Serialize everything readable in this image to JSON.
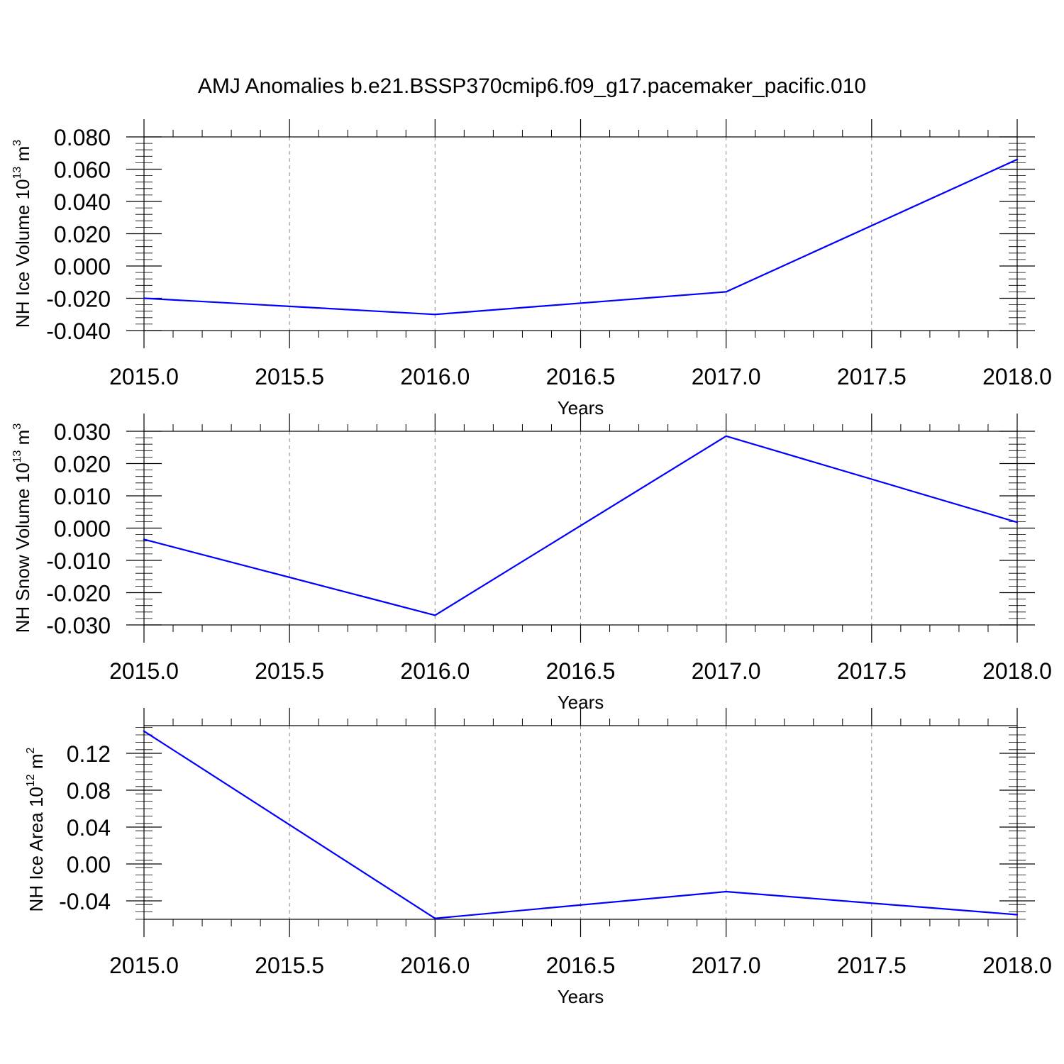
{
  "title": "AMJ Anomalies b.e21.BSSP370cmip6.f09_g17.pacemaker_pacific.010",
  "chart_data": [
    {
      "type": "line",
      "title": "AMJ Anomalies b.e21.BSSP370cmip6.f09_g17.pacemaker_pacific.010",
      "xlabel": "Years",
      "ylabel": {
        "text": "NH Ice Volume 10",
        "sup": "13",
        "unit": " m",
        "unit_sup": "3"
      },
      "x": [
        2015.0,
        2016.0,
        2017.0,
        2018.0
      ],
      "series": [
        {
          "values": [
            -0.02,
            -0.03,
            -0.016,
            0.066
          ],
          "color": "#0000ff"
        }
      ],
      "xlim": [
        2015.0,
        2018.0
      ],
      "ylim": [
        -0.04,
        0.08
      ],
      "xticks": [
        "2015.0",
        "2015.5",
        "2016.0",
        "2016.5",
        "2017.0",
        "2017.5",
        "2018.0"
      ],
      "yticks": [
        "-0.040",
        "-0.020",
        "0.000",
        "0.020",
        "0.040",
        "0.060",
        "0.080"
      ],
      "grid": "vertical dashed"
    },
    {
      "type": "line",
      "xlabel": "Years",
      "ylabel": {
        "text": "NH Snow Volume 10",
        "sup": "13",
        "unit": " m",
        "unit_sup": "3"
      },
      "x": [
        2015.0,
        2016.0,
        2017.0,
        2018.0
      ],
      "series": [
        {
          "values": [
            -0.0035,
            -0.027,
            0.0285,
            0.0018
          ],
          "color": "#0000ff"
        }
      ],
      "xlim": [
        2015.0,
        2018.0
      ],
      "ylim": [
        -0.03,
        0.03
      ],
      "xticks": [
        "2015.0",
        "2015.5",
        "2016.0",
        "2016.5",
        "2017.0",
        "2017.5",
        "2018.0"
      ],
      "yticks": [
        "-0.030",
        "-0.020",
        "-0.010",
        "0.000",
        "0.010",
        "0.020",
        "0.030"
      ],
      "grid": "vertical dashed"
    },
    {
      "type": "line",
      "xlabel": "Years",
      "ylabel": {
        "text": "NH Ice Area 10",
        "sup": "12",
        "unit": " m",
        "unit_sup": "2"
      },
      "x": [
        2015.0,
        2016.0,
        2017.0,
        2018.0
      ],
      "series": [
        {
          "values": [
            0.144,
            -0.059,
            -0.03,
            -0.055
          ],
          "color": "#0000ff"
        }
      ],
      "xlim": [
        2015.0,
        2018.0
      ],
      "ylim": [
        -0.06,
        0.15
      ],
      "xticks": [
        "2015.0",
        "2015.5",
        "2016.0",
        "2016.5",
        "2017.0",
        "2017.5",
        "2018.0"
      ],
      "yticks": [
        "-0.04",
        "0.00",
        "0.04",
        "0.08",
        "0.12"
      ],
      "grid": "vertical dashed"
    }
  ]
}
